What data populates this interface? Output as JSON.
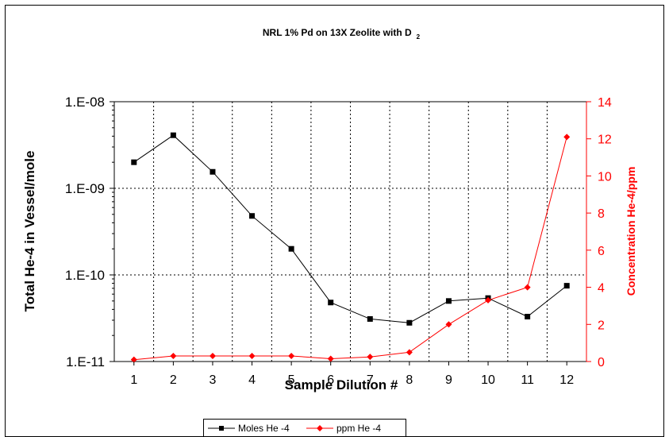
{
  "chart_data": {
    "type": "line",
    "title": "NRL 1% Pd on 13X Zeolite with D",
    "title_subscript": "2",
    "xlabel": "Sample Dilution #",
    "ylabel_left": "Total He-4 in Vessel/mole",
    "ylabel_right": "Concentration He-4/ppm",
    "x": [
      1,
      2,
      3,
      4,
      5,
      6,
      7,
      8,
      9,
      10,
      11,
      12
    ],
    "x_tick_labels": [
      "1",
      "2",
      "3",
      "4",
      "5",
      "6",
      "7",
      "8",
      "9",
      "10",
      "11",
      "12"
    ],
    "y_left_scale": "log",
    "y_left_range": [
      1e-11,
      1e-08
    ],
    "y_left_tick_labels": [
      "1.E-08",
      "1.E-09",
      "1.E-10",
      "1.E-11"
    ],
    "y_right_range": [
      0,
      14
    ],
    "y_right_tick_labels": [
      "14",
      "12",
      "10",
      "8",
      "6",
      "4",
      "2",
      "0"
    ],
    "grid": true,
    "legend_position": "bottom-left",
    "series": [
      {
        "name": "Moles He -4",
        "axis": "left",
        "color": "#000000",
        "marker": "square",
        "values": [
          2e-09,
          4.1e-09,
          1.55e-09,
          4.8e-10,
          2e-10,
          4.8e-11,
          3.1e-11,
          2.8e-11,
          5e-11,
          5.4e-11,
          3.3e-11,
          7.5e-11
        ]
      },
      {
        "name": "ppm He -4",
        "axis": "right",
        "color": "#ff0000",
        "marker": "diamond",
        "values": [
          0.1,
          0.3,
          0.3,
          0.3,
          0.3,
          0.15,
          0.25,
          0.5,
          2.0,
          3.3,
          4.0,
          12.1
        ]
      }
    ]
  }
}
